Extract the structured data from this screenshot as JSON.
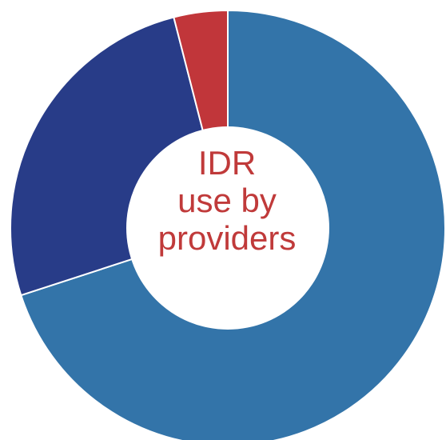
{
  "chart_data": {
    "type": "pie",
    "donut": true,
    "title_lines": [
      "IDR",
      "use by",
      "providers"
    ],
    "slices": [
      {
        "value": 70,
        "color": "#3374a9"
      },
      {
        "value": 26,
        "color": "#283c88"
      },
      {
        "value": 4,
        "color": "#c1363a"
      }
    ],
    "start": "12 o'clock",
    "direction": "clockwise"
  }
}
